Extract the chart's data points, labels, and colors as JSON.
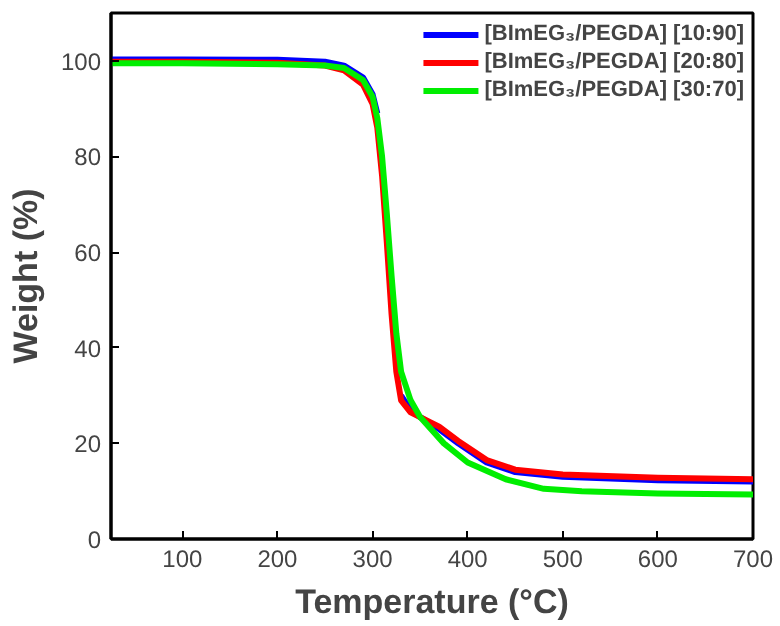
{
  "chart_data": {
    "type": "line",
    "xlabel": "Temperature (°C)",
    "ylabel": "Weight (%)",
    "xlim": [
      25,
      700
    ],
    "ylim": [
      0,
      110
    ],
    "xticks": [
      100,
      200,
      300,
      400,
      500,
      600,
      700
    ],
    "yticks": [
      0,
      20,
      40,
      60,
      80,
      100
    ],
    "grid": false,
    "legend": "top right",
    "line_style": "solid",
    "marker": "none",
    "series": [
      {
        "name": "[BImEG₃/PEGDA] [10:90]",
        "color": "#0000ff",
        "x": [
          25,
          100,
          200,
          250,
          270,
          290,
          300,
          305,
          310,
          315,
          320,
          325,
          330,
          340,
          350,
          370,
          390,
          420,
          450,
          500,
          600,
          700
        ],
        "values": [
          100.3,
          100.3,
          100.2,
          99.8,
          99,
          96.5,
          93,
          89,
          null,
          null,
          null,
          null,
          30,
          27,
          25.5,
          23,
          20,
          16,
          14,
          13,
          12.3,
          12
        ]
      },
      {
        "name": "[BImEG₃/PEGDA] [20:80]",
        "color": "#ff0000",
        "x": [
          25,
          100,
          200,
          250,
          270,
          290,
          300,
          305,
          310,
          315,
          320,
          325,
          330,
          340,
          350,
          370,
          390,
          420,
          450,
          500,
          600,
          700
        ],
        "values": [
          99.8,
          99.8,
          99.6,
          99,
          98,
          95,
          91,
          86,
          76,
          62,
          47,
          35,
          29,
          26.5,
          25.5,
          23.5,
          20.5,
          16.5,
          14.5,
          13.5,
          12.8,
          12.5
        ]
      },
      {
        "name": "[BImEG₃/PEGDA] [30:70]",
        "color": "#00ee00",
        "x": [
          25,
          100,
          200,
          250,
          270,
          290,
          300,
          305,
          310,
          315,
          320,
          325,
          330,
          340,
          350,
          375,
          400,
          440,
          480,
          520,
          600,
          700
        ],
        "values": [
          99.5,
          99.5,
          99.3,
          99,
          98.5,
          96,
          92.5,
          88,
          80,
          68,
          55,
          43,
          35,
          29,
          25.5,
          20,
          16,
          12.5,
          10.5,
          10,
          9.5,
          9.3
        ]
      }
    ]
  }
}
